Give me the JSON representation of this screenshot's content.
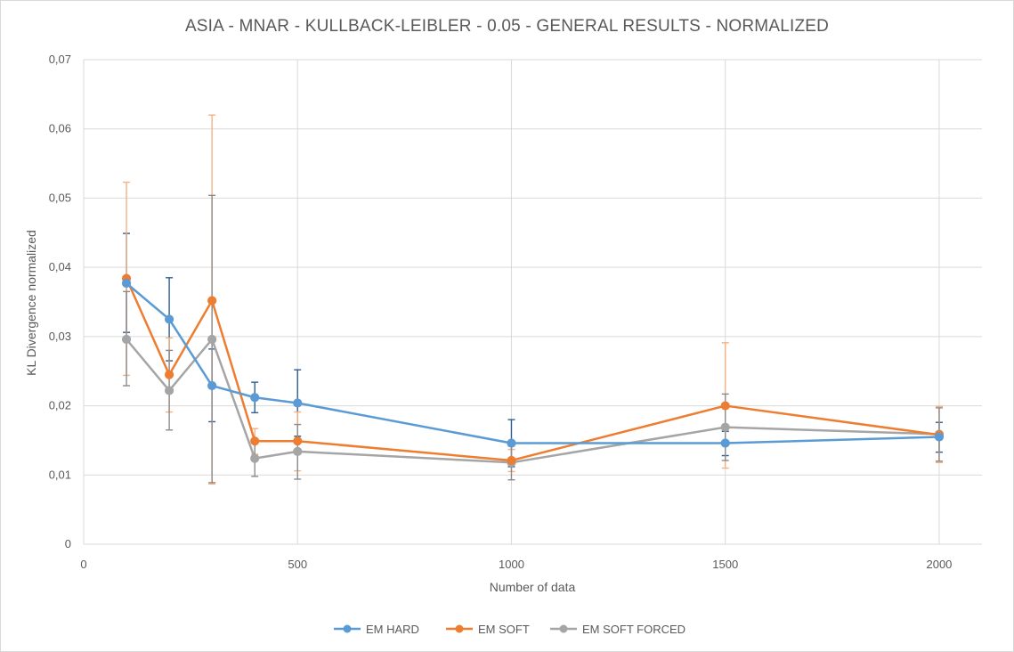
{
  "chart_data": {
    "type": "line",
    "title": "ASIA - MNAR - KULLBACK-LEIBLER - 0.05 - GENERAL RESULTS - NORMALIZED",
    "xlabel": "Number of data",
    "ylabel": "KL Divergence normalized",
    "xlim": [
      0,
      2100
    ],
    "ylim": [
      0,
      0.07
    ],
    "x_ticks": [
      0,
      500,
      1000,
      1500,
      2000
    ],
    "x_tick_labels": [
      "0",
      "500",
      "1000",
      "1500",
      "2000"
    ],
    "y_ticks": [
      0,
      0.01,
      0.02,
      0.03,
      0.04,
      0.05,
      0.06,
      0.07
    ],
    "y_tick_labels": [
      "0",
      "0,01",
      "0,02",
      "0,03",
      "0,04",
      "0,05",
      "0,06",
      "0,07"
    ],
    "grid": true,
    "legend_position": "bottom",
    "x": [
      100,
      200,
      300,
      400,
      500,
      1000,
      1500,
      2000
    ],
    "series": [
      {
        "name": "EM HARD",
        "color": "#5B9BD5",
        "error_color": "#2E5E91",
        "values": [
          0.0377,
          0.0325,
          0.0229,
          0.0212,
          0.0204,
          0.0146,
          0.0146,
          0.0155
        ],
        "error_low": [
          0.0306,
          0.0265,
          0.0177,
          0.019,
          0.0156,
          0.0112,
          0.0128,
          0.0133
        ],
        "error_high": [
          0.0449,
          0.0385,
          0.0282,
          0.0234,
          0.0252,
          0.018,
          0.0163,
          0.0176
        ]
      },
      {
        "name": "EM SOFT",
        "color": "#ED7D31",
        "error_color": "#F4B183",
        "values": [
          0.0384,
          0.0245,
          0.0352,
          0.0149,
          0.0149,
          0.0121,
          0.02,
          0.0158
        ],
        "error_low": [
          0.0244,
          0.0191,
          0.0087,
          0.013,
          0.0106,
          0.0105,
          0.011,
          0.0118
        ],
        "error_high": [
          0.0523,
          0.0298,
          0.062,
          0.0167,
          0.0191,
          0.0137,
          0.0291,
          0.0199
        ]
      },
      {
        "name": "EM SOFT FORCED",
        "color": "#A5A5A5",
        "error_color": "#8C8C8C",
        "values": [
          0.0296,
          0.0222,
          0.0296,
          0.0124,
          0.0134,
          0.0118,
          0.0169,
          0.0159
        ],
        "error_low": [
          0.0229,
          0.0165,
          0.0089,
          0.0098,
          0.0094,
          0.0093,
          0.0121,
          0.012
        ],
        "error_high": [
          0.0365,
          0.028,
          0.0504,
          0.015,
          0.0173,
          0.0142,
          0.0217,
          0.0197
        ]
      }
    ]
  }
}
